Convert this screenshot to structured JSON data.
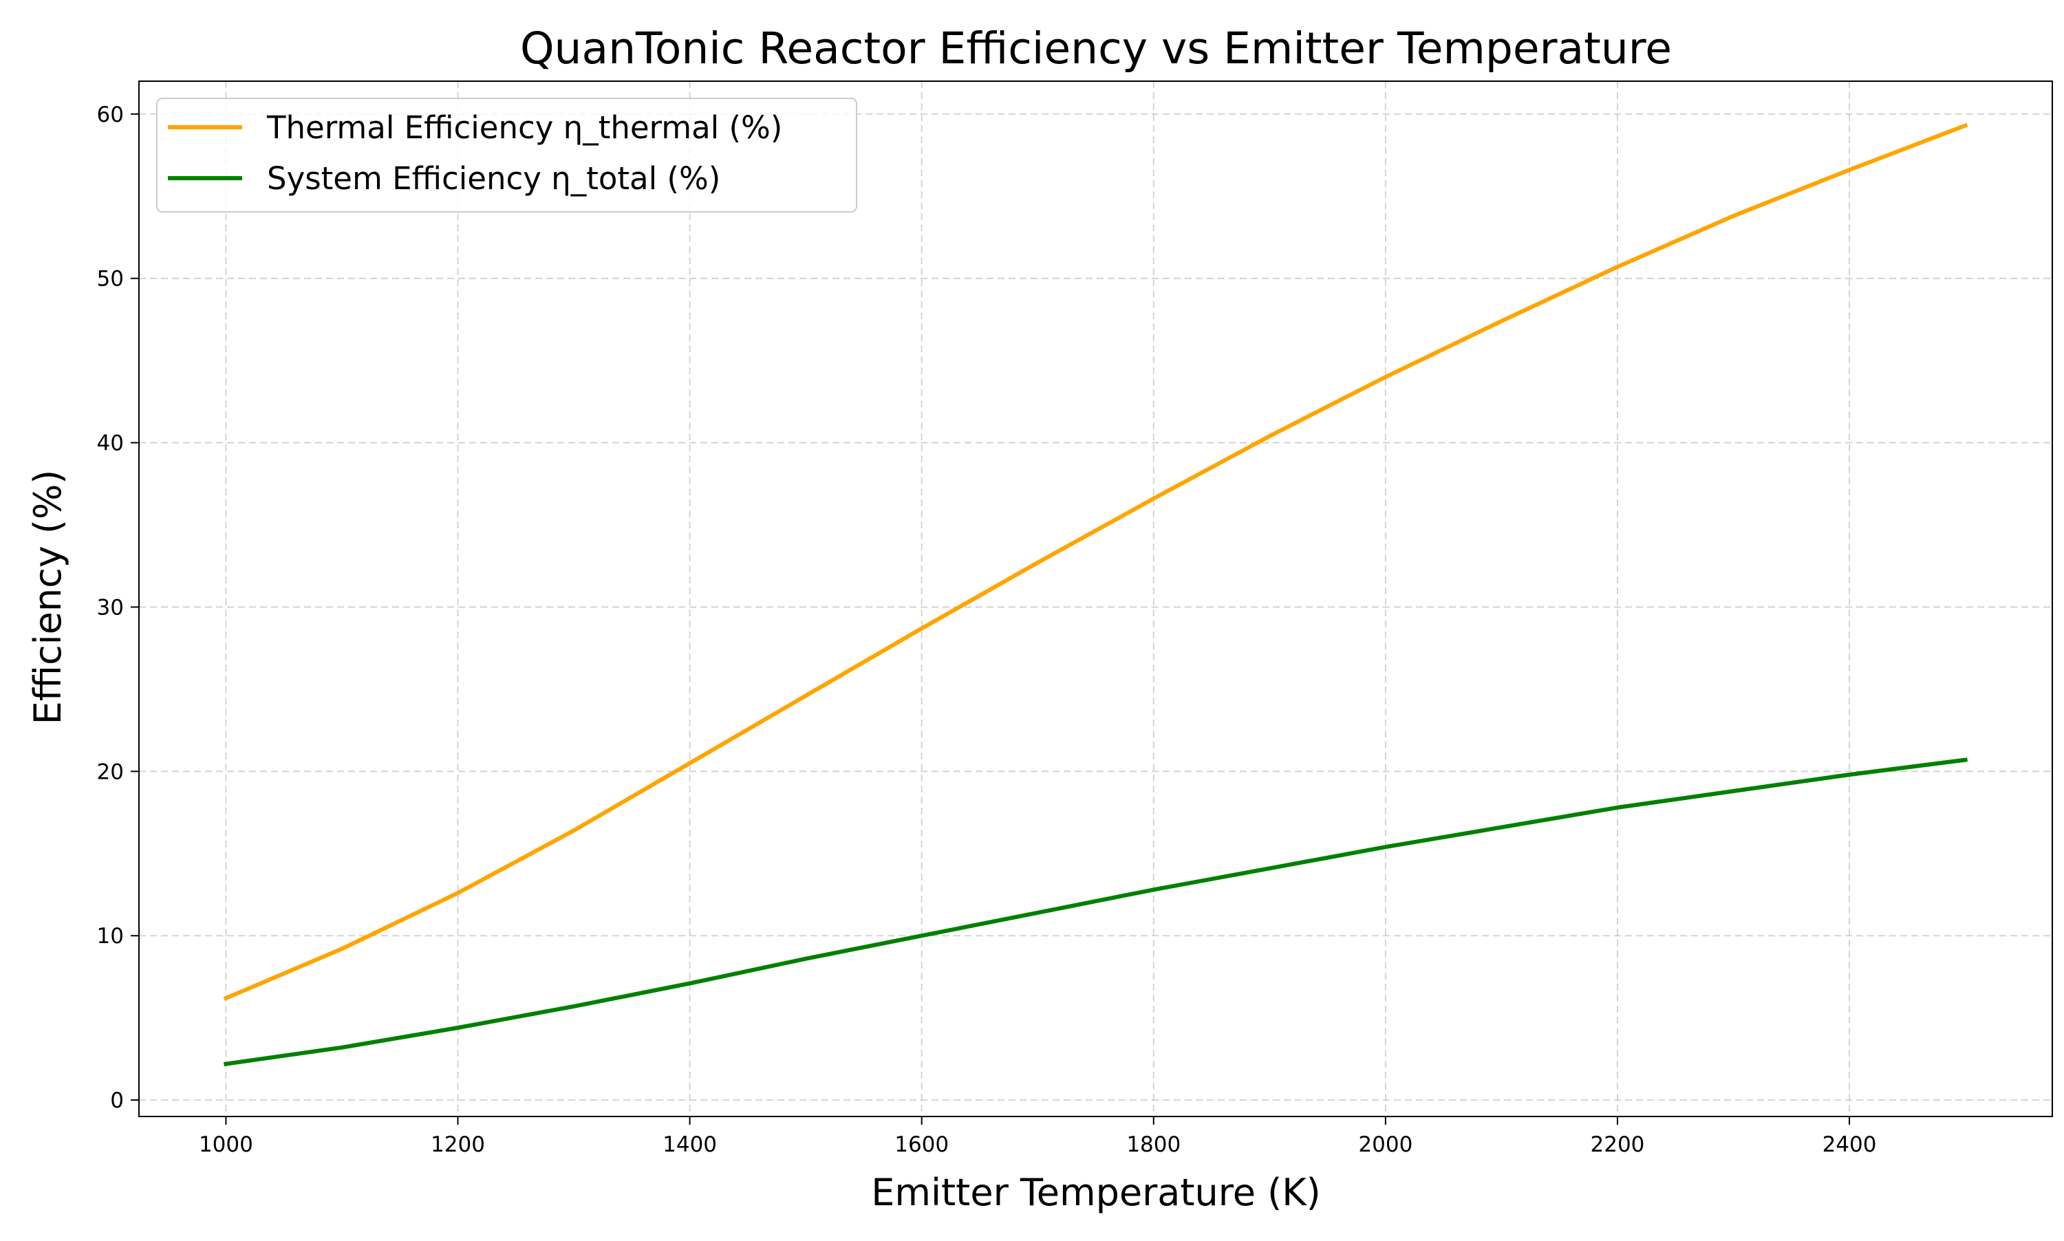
{
  "chart_data": {
    "type": "line",
    "title": "QuanTonic Reactor Efficiency vs Emitter Temperature",
    "xlabel": "Emitter Temperature (K)",
    "ylabel": "Efficiency (%)",
    "xlim": [
      925,
      2575
    ],
    "ylim": [
      -1,
      62
    ],
    "x_ticks": [
      1000,
      1200,
      1400,
      1600,
      1800,
      2000,
      2200,
      2400
    ],
    "y_ticks": [
      0,
      10,
      20,
      30,
      40,
      50,
      60
    ],
    "grid": true,
    "legend_position": "top-left",
    "x": [
      1000,
      1100,
      1200,
      1300,
      1400,
      1500,
      1600,
      1700,
      1800,
      1900,
      2000,
      2100,
      2200,
      2300,
      2400,
      2500
    ],
    "series": [
      {
        "name": "Thermal Efficiency η_thermal (%)",
        "color": "#FFA500",
        "values": [
          6.2,
          9.2,
          12.6,
          16.4,
          20.5,
          24.6,
          28.7,
          32.7,
          36.6,
          40.4,
          44.0,
          47.4,
          50.7,
          53.8,
          56.6,
          59.3
        ]
      },
      {
        "name": "System Efficiency η_total (%)",
        "color": "#008000",
        "values": [
          2.2,
          3.2,
          4.4,
          5.7,
          7.1,
          8.6,
          10.0,
          11.4,
          12.8,
          14.1,
          15.4,
          16.6,
          17.8,
          18.8,
          19.8,
          20.7
        ]
      }
    ]
  }
}
